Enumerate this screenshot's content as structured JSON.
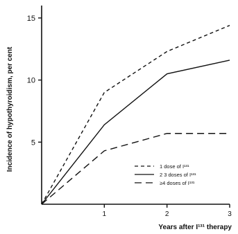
{
  "chart_data": {
    "type": "line",
    "xlabel": "Years after I¹³¹ therapy",
    "ylabel": "Incidence of hypothyroidism, per cent",
    "xlim": [
      0,
      3
    ],
    "ylim": [
      0,
      16
    ],
    "x_ticks": [
      "1",
      "2",
      "3"
    ],
    "y_ticks": [
      "5",
      "10",
      "15"
    ],
    "grid": false,
    "legend_position": "lower-right",
    "series": [
      {
        "name": "1 dose of I¹³¹",
        "style": "dashed-short",
        "x": [
          0,
          1,
          2,
          3
        ],
        "y": [
          0,
          9.0,
          12.3,
          14.4
        ]
      },
      {
        "name": "2 3 doses of I¹³¹",
        "style": "solid",
        "x": [
          0,
          1,
          2,
          3
        ],
        "y": [
          0,
          6.4,
          10.5,
          11.6
        ]
      },
      {
        "name": "≥4 doses of I¹³¹",
        "style": "dashed-long",
        "x": [
          0,
          1,
          2,
          3
        ],
        "y": [
          0,
          4.3,
          5.7,
          5.7
        ]
      }
    ]
  }
}
